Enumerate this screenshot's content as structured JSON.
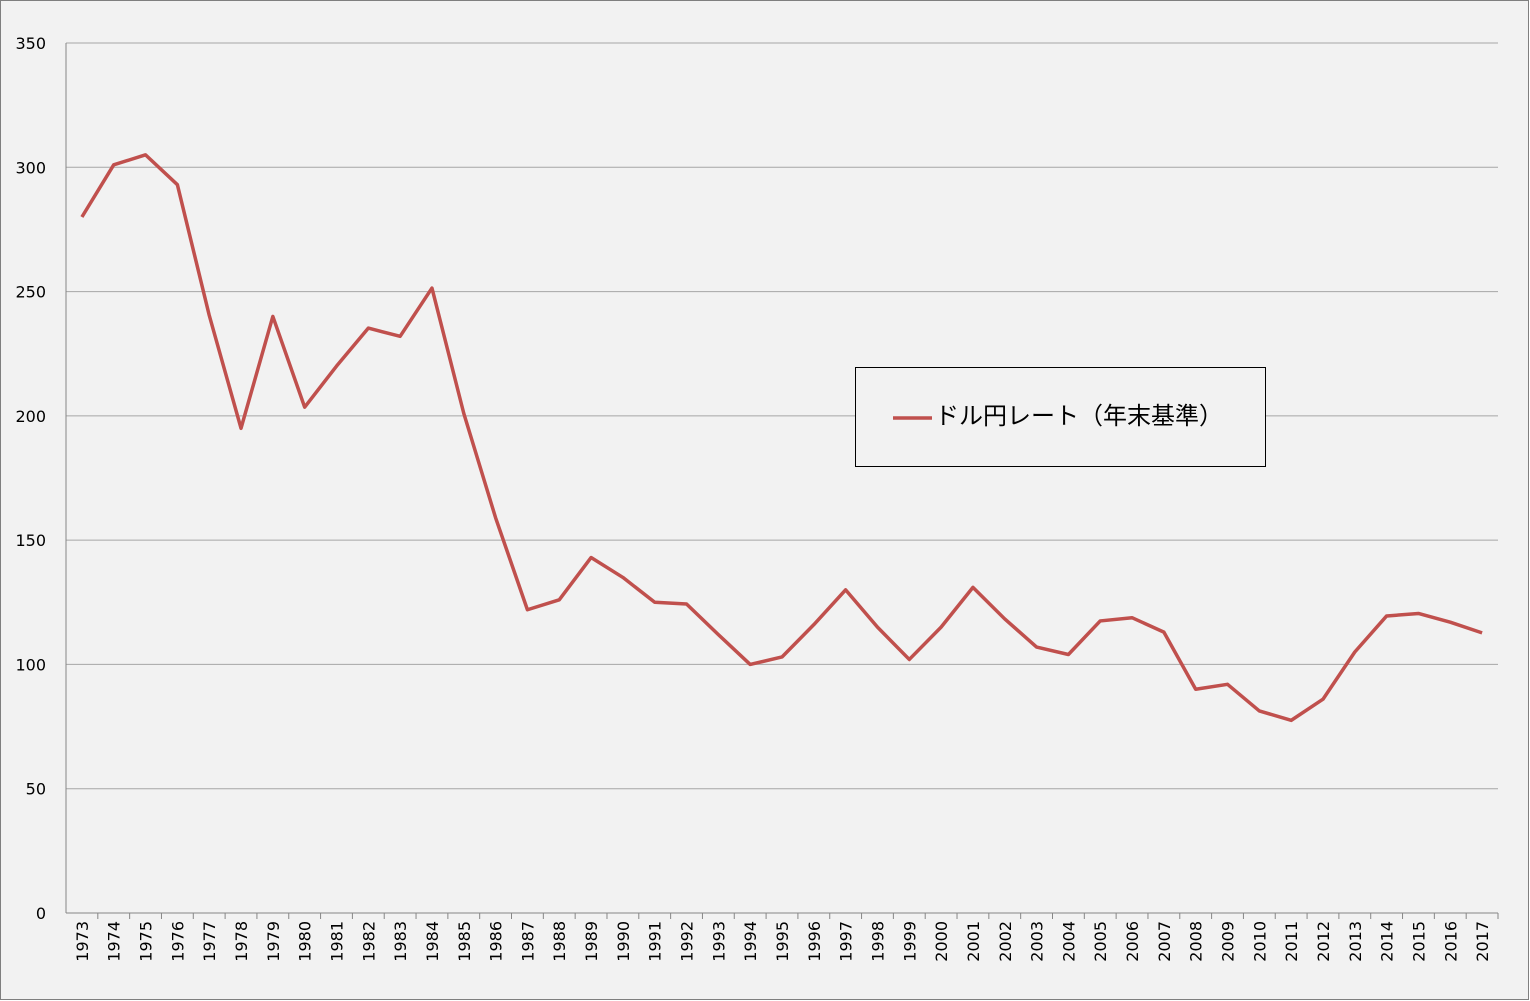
{
  "chart_data": {
    "type": "line",
    "categories": [
      "1973",
      "1974",
      "1975",
      "1976",
      "1977",
      "1978",
      "1979",
      "1980",
      "1981",
      "1982",
      "1983",
      "1984",
      "1985",
      "1986",
      "1987",
      "1988",
      "1989",
      "1990",
      "1991",
      "1992",
      "1993",
      "1994",
      "1995",
      "1996",
      "1997",
      "1998",
      "1999",
      "2000",
      "2001",
      "2002",
      "2003",
      "2004",
      "2005",
      "2006",
      "2007",
      "2008",
      "2009",
      "2010",
      "2011",
      "2012",
      "2013",
      "2014",
      "2015",
      "2016",
      "2017"
    ],
    "series": [
      {
        "name": "ドル円レート（年末基準）",
        "color": "#c0504d",
        "values": [
          280,
          301,
          305,
          293,
          240.5,
          195,
          240,
          203.5,
          220,
          235.3,
          232,
          251.4,
          201,
          159,
          122,
          126,
          143,
          135,
          125,
          124.3,
          112,
          100,
          103,
          116,
          130,
          115,
          102,
          115,
          131,
          118.3,
          107,
          104,
          117.5,
          118.8,
          113,
          90,
          92,
          81.3,
          77.5,
          86,
          105,
          119.5,
          120.5,
          117,
          112.7
        ]
      }
    ],
    "ylim": [
      0,
      350
    ],
    "yticks": [
      0,
      50,
      100,
      150,
      200,
      250,
      300,
      350
    ],
    "grid": true,
    "legend": "right"
  }
}
